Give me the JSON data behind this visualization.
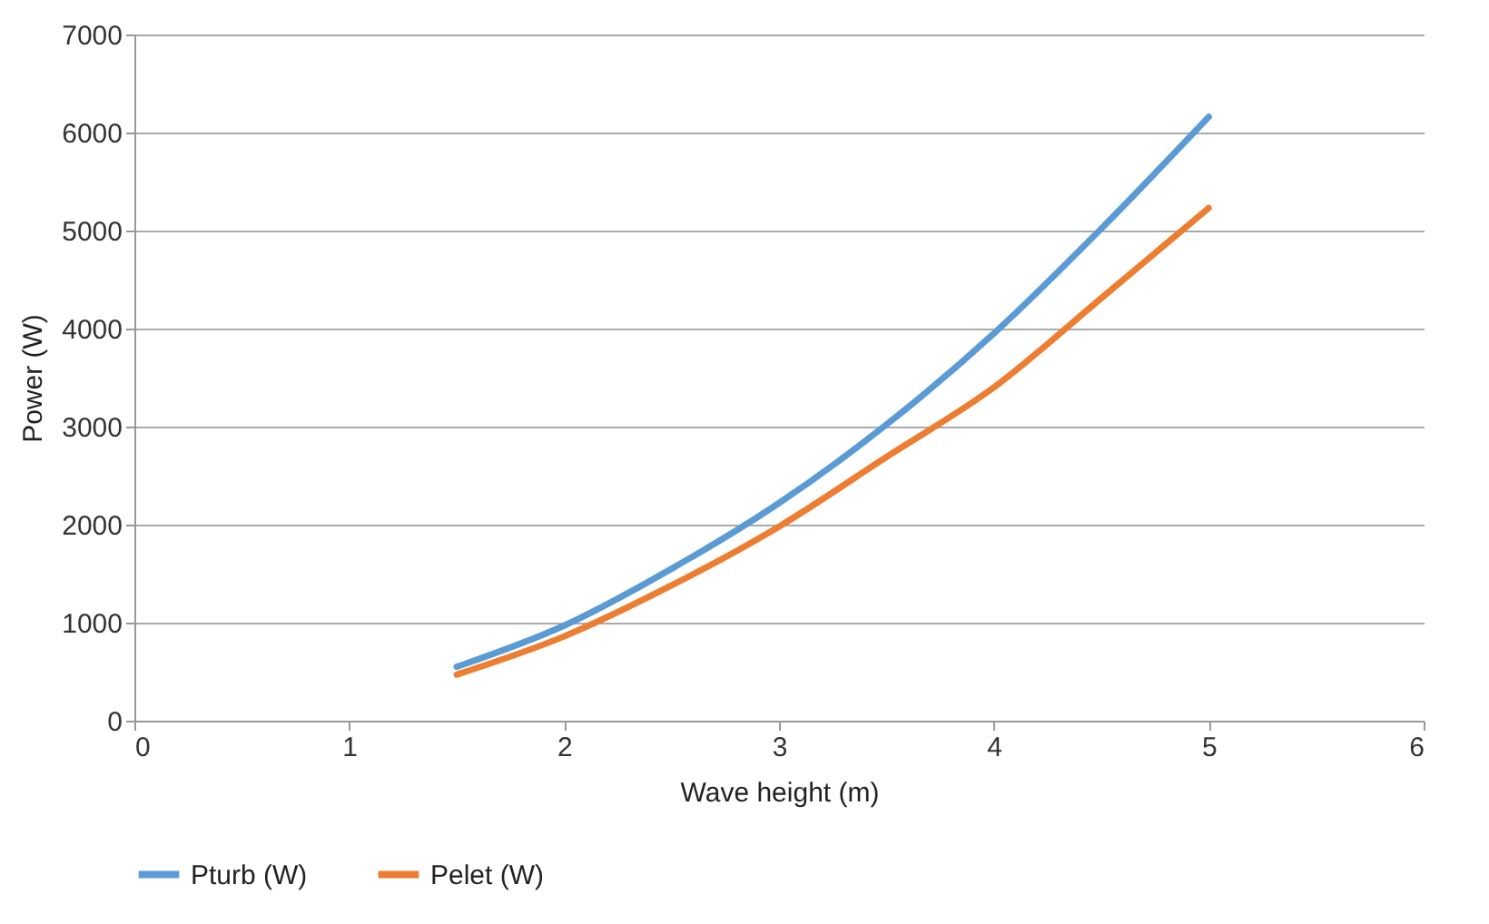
{
  "chart_data": {
    "type": "line",
    "xlabel": "Wave height (m)",
    "ylabel": "Power (W)",
    "xlim": [
      0,
      6
    ],
    "xticks": [
      0,
      1,
      2,
      3,
      4,
      5,
      6
    ],
    "ylim": [
      0,
      7000
    ],
    "yticks": [
      0,
      1000,
      2000,
      3000,
      4000,
      5000,
      6000,
      7000
    ],
    "grid": "y",
    "legend": "bottom",
    "marker": "none",
    "line_style": "solid",
    "x": [
      1.5,
      2,
      2.5,
      3,
      3.5,
      4,
      4.5,
      5
    ],
    "series": [
      {
        "name": "Pturb (W)",
        "color": "#5b9bd5",
        "values": [
          550,
          970,
          1550,
          2220,
          3020,
          3950,
          5020,
          6160
        ]
      },
      {
        "name": "Pelet (W)",
        "color": "#ed7d31",
        "values": [
          470,
          860,
          1380,
          1980,
          2690,
          3400,
          4310,
          5230
        ]
      }
    ]
  }
}
